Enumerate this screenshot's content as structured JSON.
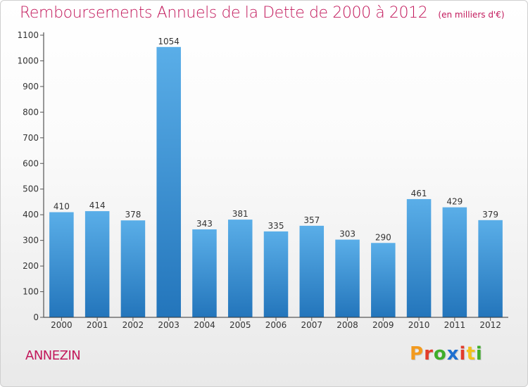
{
  "header": {
    "title": "Remboursements Annuels de la Dette de 2000 à 2012",
    "subtitle": "(en milliers d'€)"
  },
  "footer": {
    "commune": "ANNEZIN",
    "logo_letters": [
      "P",
      "r",
      "o",
      "x",
      "i",
      "t",
      "i"
    ],
    "logo_colors": [
      "#f39a1e",
      "#e23c2b",
      "#3fae2a",
      "#1d6fd0",
      "#e23c2b",
      "#f2c21b",
      "#3fae2a"
    ]
  },
  "colors": {
    "title": "#c2185b",
    "bar_top": "#5aaee8",
    "bar_bottom": "#2375bb",
    "axis": "#333333",
    "grid_tick": "#555555"
  },
  "chart_data": {
    "type": "bar",
    "categories": [
      "2000",
      "2001",
      "2002",
      "2003",
      "2004",
      "2005",
      "2006",
      "2007",
      "2008",
      "2009",
      "2010",
      "2011",
      "2012"
    ],
    "values": [
      410,
      414,
      378,
      1054,
      343,
      381,
      335,
      357,
      303,
      290,
      461,
      429,
      379
    ],
    "ylim": [
      0,
      1100
    ],
    "yticks": [
      0,
      100,
      200,
      300,
      400,
      500,
      600,
      700,
      800,
      900,
      1000,
      1100
    ],
    "grid": false,
    "xlabel": "",
    "ylabel": ""
  }
}
